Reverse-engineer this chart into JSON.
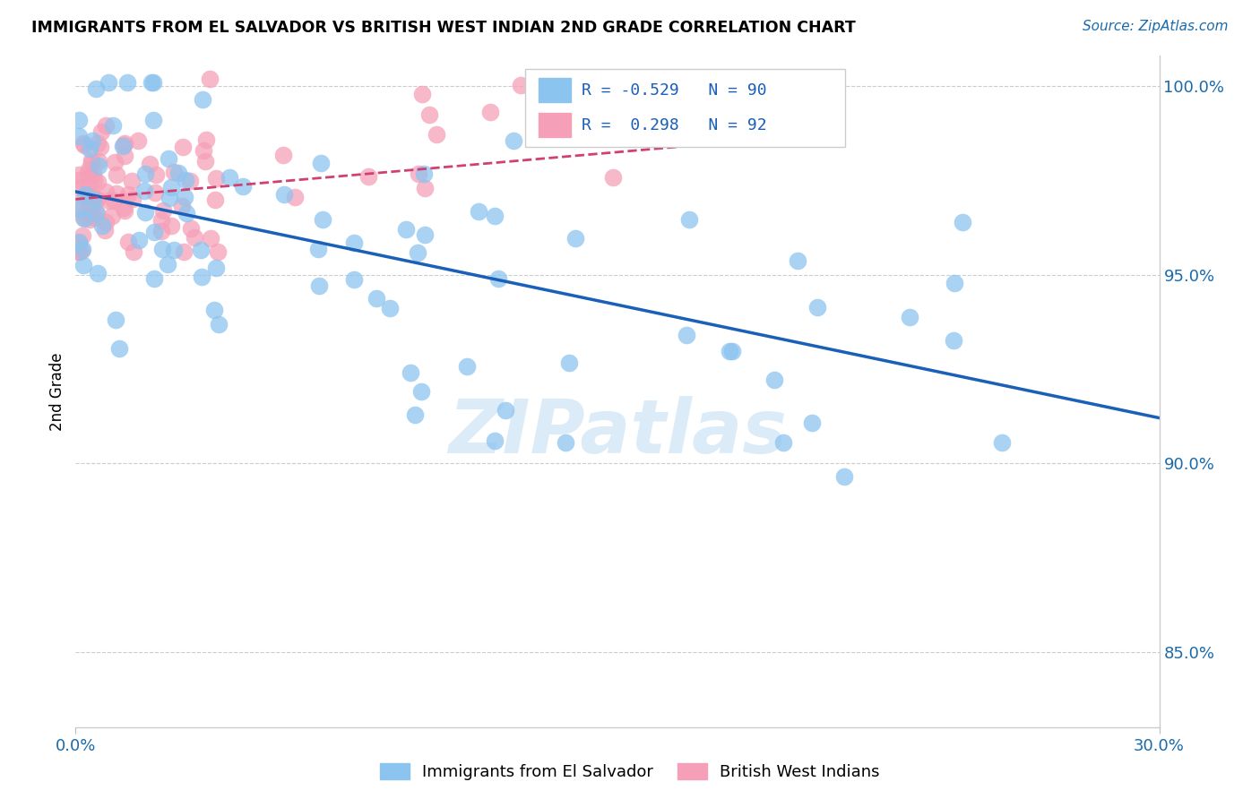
{
  "title": "IMMIGRANTS FROM EL SALVADOR VS BRITISH WEST INDIAN 2ND GRADE CORRELATION CHART",
  "source": "Source: ZipAtlas.com",
  "legend_blue_r": "-0.529",
  "legend_blue_n": "90",
  "legend_pink_r": "0.298",
  "legend_pink_n": "92",
  "legend_blue_label": "Immigrants from El Salvador",
  "legend_pink_label": "British West Indians",
  "blue_color": "#8cc4f0",
  "pink_color": "#f5a0b8",
  "blue_edge_color": "#6aaad8",
  "pink_edge_color": "#e080a0",
  "blue_line_color": "#1a5fb8",
  "pink_line_color": "#d04070",
  "watermark": "ZIPatlas",
  "ylabel": "2nd Grade",
  "xmin": 0.0,
  "xmax": 0.3,
  "ymin": 0.83,
  "ymax": 1.008,
  "yticks": [
    0.85,
    0.9,
    0.95,
    1.0
  ],
  "ytick_labels": [
    "85.0%",
    "90.0%",
    "95.0%",
    "100.0%"
  ],
  "blue_line_x0": 0.0,
  "blue_line_y0": 0.972,
  "blue_line_x1": 0.3,
  "blue_line_y1": 0.912,
  "pink_line_x0": 0.0,
  "pink_line_y0": 0.97,
  "pink_line_x1": 0.3,
  "pink_line_y1": 0.995
}
